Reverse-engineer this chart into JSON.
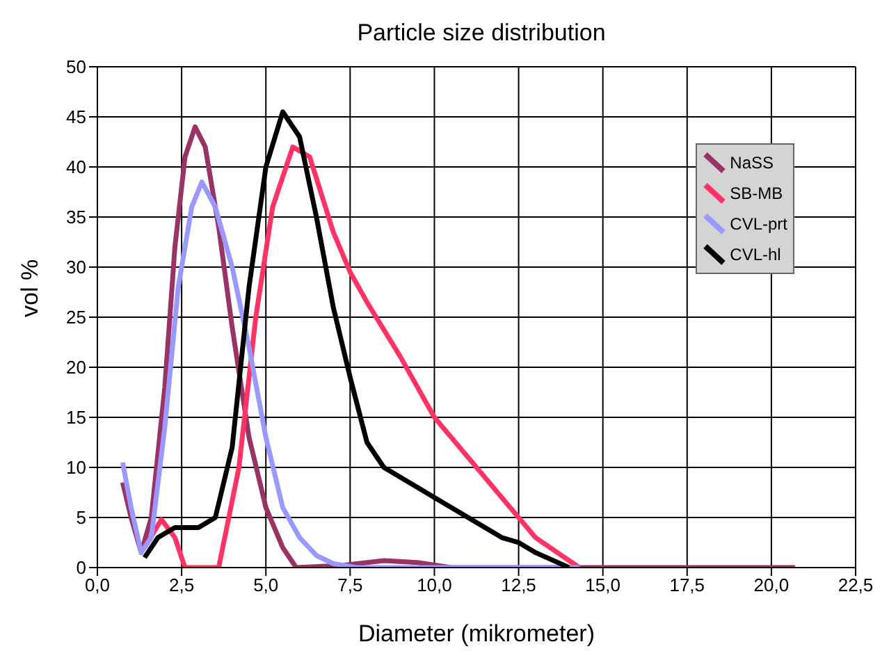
{
  "chart_data": {
    "type": "line",
    "title": "Particle size distribution",
    "xlabel": "Diameter  (mikrometer)",
    "ylabel": "vol %",
    "xlim": [
      0,
      22.5
    ],
    "xticks": [
      {
        "value": 0,
        "label": "0,0"
      },
      {
        "value": 2.5,
        "label": "2,5"
      },
      {
        "value": 5,
        "label": "5,0"
      },
      {
        "value": 7.5,
        "label": "7,5"
      },
      {
        "value": 10,
        "label": "10,0"
      },
      {
        "value": 12.5,
        "label": "12,5"
      },
      {
        "value": 15,
        "label": "15,0"
      },
      {
        "value": 17.5,
        "label": "17,5"
      },
      {
        "value": 20,
        "label": "20,0"
      },
      {
        "value": 22.5,
        "label": "22,5"
      }
    ],
    "ylim": [
      0,
      50
    ],
    "yticks": [
      0,
      5,
      10,
      15,
      20,
      25,
      30,
      35,
      40,
      45,
      50
    ],
    "grid": true,
    "legend": "right",
    "marker": "none",
    "line_style": "solid",
    "series": [
      {
        "name": "NaSS",
        "color": "#993366",
        "x": [
          0.75,
          1.0,
          1.3,
          1.6,
          2.0,
          2.3,
          2.6,
          2.9,
          3.2,
          3.6,
          4.0,
          4.5,
          5.0,
          5.5,
          5.9,
          7.2,
          8.5,
          9.5,
          10.5,
          14.3,
          20.7
        ],
        "values": [
          8.5,
          5,
          1.5,
          5,
          18,
          32,
          41,
          44,
          42,
          34,
          24,
          13,
          6,
          2,
          0,
          0.2,
          0.7,
          0.5,
          0,
          0,
          0
        ]
      },
      {
        "name": "SB-MB",
        "color": "#ff3366",
        "x": [
          1.4,
          1.9,
          2.3,
          2.6,
          3.6,
          4.2,
          4.7,
          5.2,
          5.8,
          6.3,
          7.0,
          7.5,
          8.0,
          9.0,
          10.0,
          11.0,
          12.0,
          13.0,
          14.3
        ],
        "values": [
          2,
          4.8,
          3,
          0,
          0,
          10,
          25,
          36,
          42,
          41,
          33.5,
          29.5,
          26.5,
          21,
          15,
          11,
          7,
          3,
          0
        ]
      },
      {
        "name": "CVL-prt",
        "color": "#9999ff",
        "x": [
          0.75,
          1.0,
          1.3,
          1.6,
          2.0,
          2.4,
          2.8,
          3.1,
          3.5,
          4.0,
          4.5,
          5.0,
          5.5,
          6.0,
          6.5,
          7.0,
          7.7,
          10.5,
          14.3
        ],
        "values": [
          10.5,
          6,
          1.5,
          3,
          14,
          28,
          36,
          38.5,
          36,
          30,
          22,
          13,
          6,
          3,
          1.2,
          0.4,
          0,
          0,
          0
        ]
      },
      {
        "name": "CVL-hl",
        "color": "#000000",
        "x": [
          1.4,
          1.8,
          2.3,
          3.0,
          3.5,
          4.0,
          4.5,
          5.0,
          5.5,
          6.0,
          6.5,
          7.0,
          7.5,
          8.0,
          8.5,
          9.5,
          10.0,
          11.0,
          12.0,
          12.5,
          13.0,
          14.0
        ],
        "values": [
          1,
          3,
          4,
          4,
          5,
          12,
          28,
          40,
          45.5,
          43,
          35,
          26,
          19,
          12.5,
          10,
          8,
          7,
          5,
          3,
          2.5,
          1.5,
          0
        ]
      }
    ]
  }
}
